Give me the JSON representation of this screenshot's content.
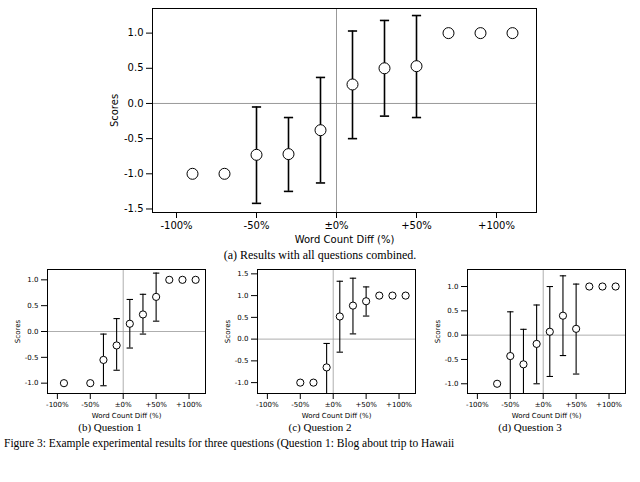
{
  "caption": "Figure 3: Example experimental results for three questions (Question 1: Blog about trip to Hawaii",
  "chart_data": [
    {
      "type": "scatter",
      "title": "(a) Results with all questions combined.",
      "x_label": "Word Count Diff (%)",
      "y_label": "Scores",
      "x": [
        -90,
        -70,
        -50,
        -30,
        -10,
        10,
        30,
        50,
        70,
        90,
        110
      ],
      "values": [
        -1.0,
        -1.0,
        -0.73,
        -0.72,
        -0.38,
        0.27,
        0.5,
        0.53,
        1.0,
        1.0,
        1.0
      ],
      "error_low": [
        null,
        null,
        -1.42,
        -1.25,
        -1.13,
        -0.5,
        -0.18,
        -0.2,
        null,
        null,
        null
      ],
      "error_high": [
        null,
        null,
        -0.05,
        -0.2,
        0.37,
        1.03,
        1.18,
        1.25,
        null,
        null,
        null
      ],
      "xlim": [
        -115,
        125
      ],
      "xticks": [
        {
          "value": -100,
          "label": "-100%"
        },
        {
          "value": -50,
          "label": "-50%"
        },
        {
          "value": 0,
          "label": "±0%"
        },
        {
          "value": 50,
          "label": "+50%"
        },
        {
          "value": 100,
          "label": "+100%"
        }
      ],
      "ylim": [
        -1.55,
        1.35
      ],
      "yticks": [
        {
          "value": -1.5,
          "label": "-1.5"
        },
        {
          "value": -1,
          "label": "-1.0"
        },
        {
          "value": -0.5,
          "label": "-0.5"
        },
        {
          "value": 0,
          "label": "0.0"
        },
        {
          "value": 0.5,
          "label": "0.5"
        },
        {
          "value": 1,
          "label": "1.0"
        }
      ],
      "marker": "circle"
    },
    {
      "type": "scatter",
      "title": "(b) Question 1",
      "x_label": "Word Count Diff (%)",
      "y_label": "Scores",
      "x": [
        -90,
        -50,
        -30,
        -10,
        10,
        30,
        50,
        70,
        90,
        110
      ],
      "values": [
        -1.0,
        -1.0,
        -0.55,
        -0.27,
        0.15,
        0.33,
        0.67,
        1.0,
        1.0,
        1.0
      ],
      "error_low": [
        null,
        null,
        -1.05,
        -0.75,
        -0.32,
        -0.05,
        0.2,
        null,
        null,
        null
      ],
      "error_high": [
        null,
        null,
        -0.05,
        0.25,
        0.62,
        0.72,
        1.13,
        null,
        null,
        null
      ],
      "xlim": [
        -115,
        125
      ],
      "xticks": [
        {
          "value": -100,
          "label": "-100%"
        },
        {
          "value": -50,
          "label": "-50%"
        },
        {
          "value": 0,
          "label": "±0%"
        },
        {
          "value": 50,
          "label": "+50%"
        },
        {
          "value": 100,
          "label": "+100%"
        }
      ],
      "ylim": [
        -1.2,
        1.2
      ],
      "yticks": [
        {
          "value": -1,
          "label": "-1.0"
        },
        {
          "value": -0.5,
          "label": "-0.5"
        },
        {
          "value": 0,
          "label": "0.0"
        },
        {
          "value": 0.5,
          "label": "0.5"
        },
        {
          "value": 1,
          "label": "1.0"
        }
      ],
      "marker": "circle"
    },
    {
      "type": "scatter",
      "title": "(c) Question 2",
      "x_label": "Word Count Diff (%)",
      "y_label": "Scores",
      "x": [
        -50,
        -30,
        -10,
        10,
        30,
        50,
        70,
        90,
        110
      ],
      "values": [
        -1.0,
        -1.0,
        -0.65,
        0.52,
        0.77,
        0.87,
        1.0,
        1.0,
        1.0
      ],
      "error_low": [
        null,
        null,
        -1.35,
        -0.3,
        0.12,
        0.53,
        null,
        null,
        null
      ],
      "error_high": [
        null,
        null,
        -0.1,
        1.33,
        1.4,
        1.2,
        null,
        null,
        null
      ],
      "xlim": [
        -115,
        125
      ],
      "xticks": [
        {
          "value": -100,
          "label": "-100%"
        },
        {
          "value": -50,
          "label": "-50%"
        },
        {
          "value": 0,
          "label": "±0%"
        },
        {
          "value": 50,
          "label": "+50%"
        },
        {
          "value": 100,
          "label": "+100%"
        }
      ],
      "ylim": [
        -1.25,
        1.6
      ],
      "yticks": [
        {
          "value": -1,
          "label": "-1.0"
        },
        {
          "value": -0.5,
          "label": "-0.5"
        },
        {
          "value": 0,
          "label": "0.0"
        },
        {
          "value": 0.5,
          "label": "0.5"
        },
        {
          "value": 1,
          "label": "1.0"
        },
        {
          "value": 1.5,
          "label": "1.5"
        }
      ],
      "marker": "circle"
    },
    {
      "type": "scatter",
      "title": "(d) Question 3",
      "x_label": "Word Count Diff (%)",
      "y_label": "Scores",
      "x": [
        -70,
        -50,
        -30,
        -10,
        10,
        30,
        50,
        70,
        90,
        110
      ],
      "values": [
        -1.0,
        -0.43,
        -0.6,
        -0.18,
        0.07,
        0.4,
        0.13,
        1.0,
        1.0,
        1.0
      ],
      "error_low": [
        null,
        -1.3,
        -1.28,
        -1.0,
        -0.85,
        -0.42,
        -0.8,
        null,
        null,
        null
      ],
      "error_high": [
        null,
        0.48,
        0.12,
        0.62,
        1.0,
        1.22,
        1.05,
        null,
        null,
        null
      ],
      "xlim": [
        -115,
        125
      ],
      "xticks": [
        {
          "value": -100,
          "label": "-100%"
        },
        {
          "value": -50,
          "label": "-50%"
        },
        {
          "value": 0,
          "label": "±0%"
        },
        {
          "value": 50,
          "label": "+50%"
        },
        {
          "value": 100,
          "label": "+100%"
        }
      ],
      "ylim": [
        -1.2,
        1.35
      ],
      "yticks": [
        {
          "value": -1,
          "label": "-1.0"
        },
        {
          "value": -0.5,
          "label": "-0.5"
        },
        {
          "value": 0,
          "label": "0.0"
        },
        {
          "value": 0.5,
          "label": "0.5"
        },
        {
          "value": 1,
          "label": "1.0"
        }
      ],
      "marker": "circle"
    }
  ]
}
